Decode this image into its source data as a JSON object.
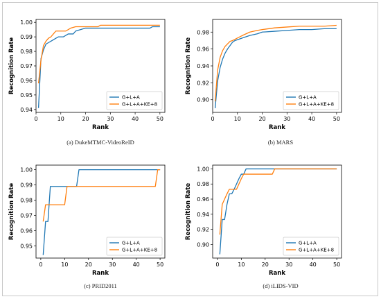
{
  "colors": {
    "series_1": "#1f77b4",
    "series_2": "#ff7f0e"
  },
  "chart_data": [
    {
      "type": "line",
      "caption": "(a) DukeMTMC-VideoReID",
      "xlabel": "Rank",
      "ylabel": "Recognition Rate",
      "xlim": [
        0,
        52
      ],
      "ylim": [
        0.938,
        1.002
      ],
      "xticks": [
        0,
        10,
        20,
        30,
        40,
        50
      ],
      "yticks": [
        0.94,
        0.95,
        0.96,
        0.97,
        0.98,
        0.99,
        1.0
      ],
      "ytick_labels": [
        "0.94",
        "0.95",
        "0.96",
        "0.97",
        "0.98",
        "0.99",
        "1.00"
      ],
      "legend_position": "lower-right",
      "series": [
        {
          "name": "G+L+A",
          "color": "#1f77b4",
          "points": [
            [
              1,
              0.941
            ],
            [
              2,
              0.975
            ],
            [
              3,
              0.981
            ],
            [
              4,
              0.985
            ],
            [
              5,
              0.986
            ],
            [
              6,
              0.987
            ],
            [
              7,
              0.988
            ],
            [
              8,
              0.989
            ],
            [
              9,
              0.99
            ],
            [
              10,
              0.99
            ],
            [
              11,
              0.99
            ],
            [
              12,
              0.991
            ],
            [
              13,
              0.992
            ],
            [
              15,
              0.992
            ],
            [
              16,
              0.994
            ],
            [
              18,
              0.995
            ],
            [
              20,
              0.996
            ],
            [
              25,
              0.996
            ],
            [
              30,
              0.996
            ],
            [
              40,
              0.996
            ],
            [
              46,
              0.996
            ],
            [
              47,
              0.997
            ],
            [
              50,
              0.997
            ]
          ]
        },
        {
          "name": "G+L+A+KE+8",
          "color": "#ff7f0e",
          "points": [
            [
              1,
              0.958
            ],
            [
              2,
              0.974
            ],
            [
              3,
              0.984
            ],
            [
              4,
              0.987
            ],
            [
              5,
              0.989
            ],
            [
              6,
              0.99
            ],
            [
              7,
              0.992
            ],
            [
              8,
              0.994
            ],
            [
              10,
              0.994
            ],
            [
              12,
              0.994
            ],
            [
              14,
              0.996
            ],
            [
              16,
              0.997
            ],
            [
              20,
              0.997
            ],
            [
              25,
              0.997
            ],
            [
              26,
              0.998
            ],
            [
              30,
              0.998
            ],
            [
              40,
              0.998
            ],
            [
              50,
              0.998
            ]
          ]
        }
      ]
    },
    {
      "type": "line",
      "caption": "(b) MARS",
      "xlabel": "Rank",
      "ylabel": "Recognition Rate",
      "xlim": [
        0,
        52
      ],
      "ylim": [
        0.885,
        0.995
      ],
      "xticks": [
        0,
        10,
        20,
        30,
        40,
        50
      ],
      "yticks": [
        0.9,
        0.92,
        0.94,
        0.96,
        0.98
      ],
      "ytick_labels": [
        "0.90",
        "0.92",
        "0.94",
        "0.96",
        "0.98"
      ],
      "legend_position": "lower-right",
      "series": [
        {
          "name": "G+L+A",
          "color": "#1f77b4",
          "points": [
            [
              1,
              0.89
            ],
            [
              2,
              0.922
            ],
            [
              3,
              0.938
            ],
            [
              4,
              0.948
            ],
            [
              5,
              0.955
            ],
            [
              6,
              0.96
            ],
            [
              7,
              0.964
            ],
            [
              8,
              0.968
            ],
            [
              9,
              0.97
            ],
            [
              10,
              0.971
            ],
            [
              12,
              0.973
            ],
            [
              15,
              0.976
            ],
            [
              18,
              0.978
            ],
            [
              20,
              0.98
            ],
            [
              25,
              0.981
            ],
            [
              30,
              0.982
            ],
            [
              35,
              0.983
            ],
            [
              40,
              0.983
            ],
            [
              45,
              0.984
            ],
            [
              50,
              0.984
            ]
          ]
        },
        {
          "name": "G+L+A+KE+8",
          "color": "#ff7f0e",
          "points": [
            [
              1,
              0.898
            ],
            [
              2,
              0.935
            ],
            [
              3,
              0.95
            ],
            [
              4,
              0.958
            ],
            [
              5,
              0.963
            ],
            [
              6,
              0.966
            ],
            [
              7,
              0.969
            ],
            [
              8,
              0.97
            ],
            [
              10,
              0.973
            ],
            [
              12,
              0.976
            ],
            [
              15,
              0.98
            ],
            [
              18,
              0.982
            ],
            [
              20,
              0.983
            ],
            [
              25,
              0.985
            ],
            [
              30,
              0.986
            ],
            [
              35,
              0.987
            ],
            [
              40,
              0.987
            ],
            [
              45,
              0.987
            ],
            [
              50,
              0.988
            ]
          ]
        }
      ]
    },
    {
      "type": "line",
      "caption": "(c) PRID2011",
      "xlabel": "Rank",
      "ylabel": "Recognition Rate",
      "xlim": [
        -2,
        52
      ],
      "ylim": [
        0.942,
        1.003
      ],
      "xticks": [
        0,
        10,
        20,
        30,
        40,
        50
      ],
      "yticks": [
        0.95,
        0.96,
        0.97,
        0.98,
        0.99,
        1.0
      ],
      "ytick_labels": [
        "0.95",
        "0.96",
        "0.97",
        "0.98",
        "0.99",
        "1.00"
      ],
      "legend_position": "lower-right",
      "series": [
        {
          "name": "G+L+A",
          "color": "#1f77b4",
          "points": [
            [
              1,
              0.944
            ],
            [
              2,
              0.966
            ],
            [
              3,
              0.966
            ],
            [
              4,
              0.989
            ],
            [
              15,
              0.989
            ],
            [
              16,
              1.0
            ],
            [
              50,
              1.0
            ]
          ]
        },
        {
          "name": "G+L+A+KE+8",
          "color": "#ff7f0e",
          "points": [
            [
              1,
              0.966
            ],
            [
              2,
              0.977
            ],
            [
              10,
              0.977
            ],
            [
              11,
              0.989
            ],
            [
              20,
              0.989
            ],
            [
              30,
              0.989
            ],
            [
              40,
              0.989
            ],
            [
              48,
              0.989
            ],
            [
              49,
              1.0
            ],
            [
              50,
              1.0
            ]
          ]
        }
      ]
    },
    {
      "type": "line",
      "caption": "(d) iLIDS-VID",
      "xlabel": "Rank",
      "ylabel": "Recognition Rate",
      "xlim": [
        -2,
        52
      ],
      "ylim": [
        0.882,
        1.005
      ],
      "xticks": [
        0,
        10,
        20,
        30,
        40,
        50
      ],
      "yticks": [
        0.9,
        0.92,
        0.94,
        0.96,
        0.98,
        1.0
      ],
      "ytick_labels": [
        "0.90",
        "0.92",
        "0.94",
        "0.96",
        "0.98",
        "1.00"
      ],
      "legend_position": "lower-right",
      "series": [
        {
          "name": "G+L+A",
          "color": "#1f77b4",
          "points": [
            [
              1,
              0.887
            ],
            [
              2,
              0.933
            ],
            [
              3,
              0.933
            ],
            [
              4,
              0.953
            ],
            [
              5,
              0.967
            ],
            [
              6,
              0.967
            ],
            [
              7,
              0.973
            ],
            [
              8,
              0.98
            ],
            [
              9,
              0.987
            ],
            [
              10,
              0.993
            ],
            [
              11,
              0.993
            ],
            [
              12,
              1.0
            ],
            [
              20,
              1.0
            ],
            [
              24,
              1.0
            ],
            [
              50,
              1.0
            ]
          ]
        },
        {
          "name": "G+L+A+KE+8",
          "color": "#ff7f0e",
          "points": [
            [
              1,
              0.913
            ],
            [
              2,
              0.953
            ],
            [
              3,
              0.96
            ],
            [
              4,
              0.967
            ],
            [
              5,
              0.973
            ],
            [
              8,
              0.973
            ],
            [
              9,
              0.98
            ],
            [
              10,
              0.987
            ],
            [
              11,
              0.993
            ],
            [
              20,
              0.993
            ],
            [
              23,
              0.993
            ],
            [
              24,
              1.0
            ],
            [
              30,
              1.0
            ],
            [
              40,
              1.0
            ],
            [
              50,
              1.0
            ]
          ]
        }
      ]
    }
  ]
}
